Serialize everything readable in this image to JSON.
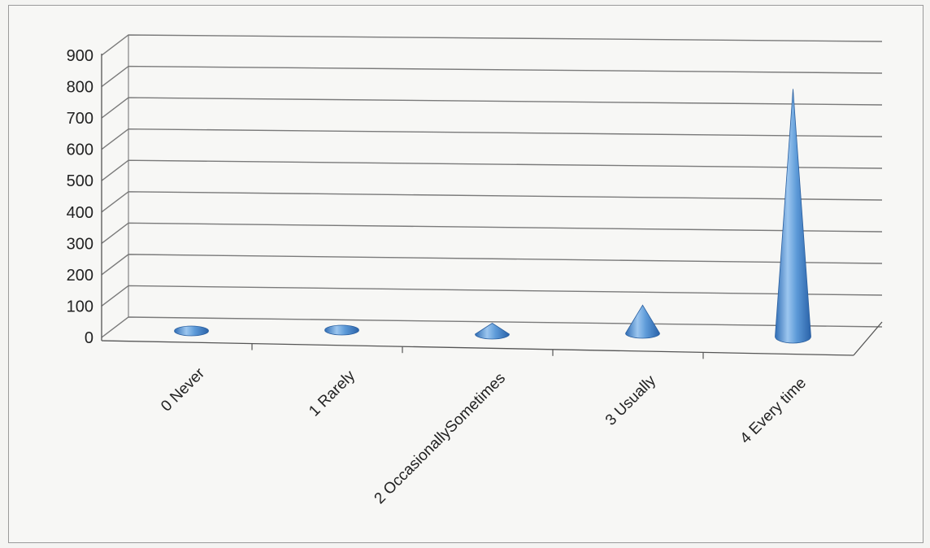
{
  "chart_data": {
    "type": "bar",
    "style": "3d-cone",
    "categories": [
      "0 Never",
      "1 Rarely",
      "2 OccasionallySometimes",
      "3 Usually",
      "4 Every time"
    ],
    "series": [
      {
        "values": [
          5,
          3,
          35,
          90,
          790
        ]
      }
    ],
    "yticks": [
      "0",
      "100",
      "200",
      "300",
      "400",
      "500",
      "600",
      "700",
      "800",
      "900"
    ],
    "ylim": [
      0,
      900
    ],
    "grid": true,
    "legend": "none",
    "colors": {
      "cone_light": "#9cc6ef",
      "cone_mid": "#4f8fd1",
      "cone_dark": "#2a62a8",
      "grid": "#7a7a7a"
    }
  }
}
